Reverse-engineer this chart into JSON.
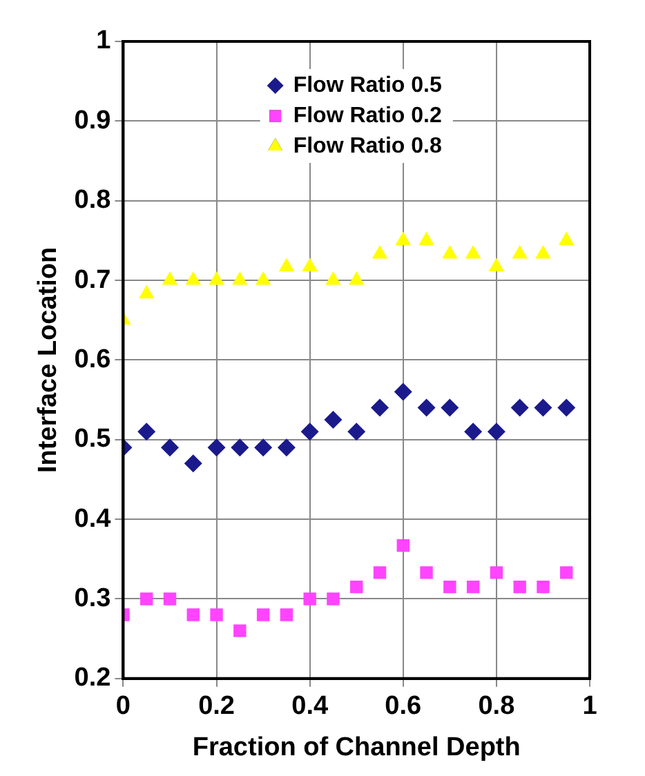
{
  "chart_data": {
    "type": "scatter",
    "xlabel": "Fraction of Channel Depth",
    "ylabel": "Interface Location",
    "x": [
      0,
      0.05,
      0.1,
      0.15,
      0.2,
      0.25,
      0.3,
      0.35,
      0.4,
      0.45,
      0.5,
      0.55,
      0.6,
      0.65,
      0.7,
      0.75,
      0.8,
      0.85,
      0.9,
      0.95
    ],
    "series": [
      {
        "name": "Flow Ratio 0.5",
        "color": "#1a1a8c",
        "marker": "diamond",
        "values": [
          0.49,
          0.51,
          0.49,
          0.47,
          0.49,
          0.49,
          0.49,
          0.49,
          0.51,
          0.525,
          0.51,
          0.54,
          0.56,
          0.54,
          0.54,
          0.51,
          0.51,
          0.54,
          0.54,
          0.54
        ]
      },
      {
        "name": "Flow Ratio 0.2",
        "color": "#ff44ff",
        "marker": "square",
        "values": [
          0.28,
          0.3,
          0.3,
          0.28,
          0.28,
          0.26,
          0.28,
          0.28,
          0.3,
          0.3,
          0.315,
          0.333,
          0.367,
          0.333,
          0.315,
          0.315,
          0.333,
          0.315,
          0.315,
          0.333
        ]
      },
      {
        "name": "Flow Ratio 0.8",
        "color": "#ffff00",
        "marker": "triangle",
        "values": [
          0.65,
          0.683,
          0.7,
          0.7,
          0.7,
          0.7,
          0.7,
          0.717,
          0.717,
          0.7,
          0.7,
          0.733,
          0.75,
          0.75,
          0.733,
          0.733,
          0.717,
          0.733,
          0.733,
          0.75
        ]
      }
    ],
    "xlim": [
      0,
      1
    ],
    "xticks": [
      0,
      0.2,
      0.4,
      0.6,
      0.8,
      1
    ],
    "ylim": [
      0.2,
      1
    ],
    "yticks": [
      0.2,
      0.3,
      0.4,
      0.5,
      0.6,
      0.7,
      0.8,
      0.9,
      1
    ],
    "grid": true,
    "legend": "top"
  }
}
